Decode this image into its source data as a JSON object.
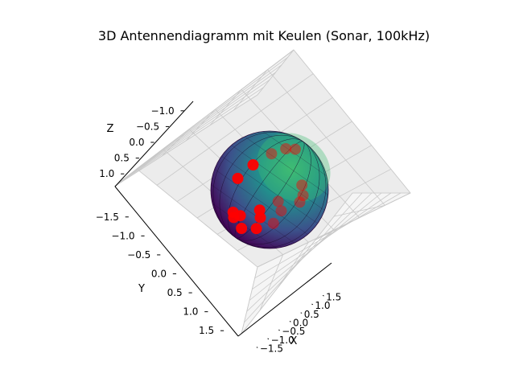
{
  "chart_data": {
    "type": "scatter",
    "projection": "3d",
    "title": "3D Antennendiagramm mit Keulen (Sonar, 100kHz)",
    "xlabel": "X",
    "ylabel": "Y",
    "zlabel": "Z",
    "x_ticks": [
      "−1.5",
      "−1.0",
      "−0.5",
      "0.0",
      "0.5",
      "1.0",
      "1.5"
    ],
    "y_ticks": [
      "−1.5",
      "−1.0",
      "−0.5",
      "0.0",
      "0.5",
      "1.0",
      "1.5"
    ],
    "z_ticks": [
      "−1.0",
      "−0.5",
      "0.0",
      "0.5",
      "1.0"
    ],
    "xlim": [
      -1.5,
      1.5
    ],
    "ylim": [
      -1.5,
      1.5
    ],
    "zlim": [
      -1.0,
      1.0
    ],
    "grid": true,
    "surface": {
      "shape": "sphere",
      "radius": 1.0,
      "colormap": "viridis",
      "color_low": "#440154",
      "color_high": "#3fbc73"
    },
    "marker_color": "#ff0000",
    "points": [
      {
        "x": -0.92,
        "y": 0.35,
        "z": 0.05
      },
      {
        "x": -0.85,
        "y": 0.2,
        "z": 0.45
      },
      {
        "x": -0.7,
        "y": -0.1,
        "z": 0.7
      },
      {
        "x": -0.55,
        "y": -0.45,
        "z": 0.7
      },
      {
        "x": -0.4,
        "y": -0.75,
        "z": 0.55
      },
      {
        "x": -0.3,
        "y": 0.55,
        "z": -0.55
      },
      {
        "x": -0.2,
        "y": 0.1,
        "z": -0.95
      },
      {
        "x": 0.05,
        "y": -0.3,
        "z": -0.9
      },
      {
        "x": 0.25,
        "y": -0.6,
        "z": -0.7
      },
      {
        "x": 0.45,
        "y": -0.85,
        "z": -0.2
      },
      {
        "x": -0.05,
        "y": 0.95,
        "z": -0.25
      },
      {
        "x": 0.3,
        "y": 0.75,
        "z": -0.55
      },
      {
        "x": 0.6,
        "y": 0.5,
        "z": -0.55
      },
      {
        "x": 0.85,
        "y": 0.25,
        "z": -0.4
      },
      {
        "x": 0.95,
        "y": -0.2,
        "z": 0.05
      },
      {
        "x": 0.6,
        "y": 0.85,
        "z": 0.1
      },
      {
        "x": 0.9,
        "y": 0.55,
        "z": 0.3
      },
      {
        "x": 1.0,
        "y": 0.1,
        "z": 0.55
      }
    ]
  }
}
